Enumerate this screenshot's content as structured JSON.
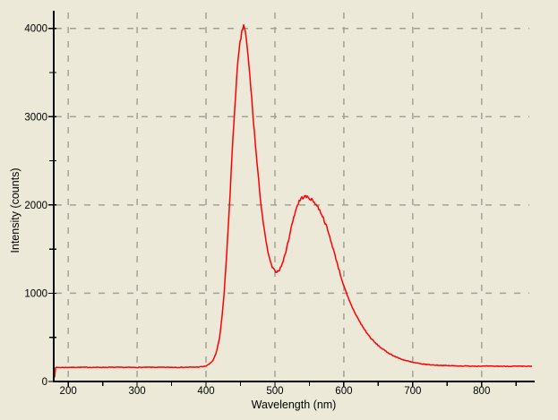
{
  "window": {
    "description": "Spectrometer intensity vs wavelength plot"
  },
  "colors": {
    "background": "#ece9d8",
    "curve": "#ff0000",
    "grid": "#a1a199",
    "axis": "#000000",
    "text": "#000000"
  },
  "chart_data": {
    "type": "line",
    "title": "",
    "xlabel": "Wavelength (nm)",
    "ylabel": "Intensity (counts)",
    "xlim": [
      179,
      877
    ],
    "ylim": [
      0,
      4200
    ],
    "x_major_ticks": [
      200,
      300,
      400,
      500,
      600,
      700,
      800
    ],
    "x_minor_ticks": [
      250,
      350,
      450,
      550,
      650,
      750,
      850
    ],
    "y_major_ticks": [
      0,
      1000,
      2000,
      3000,
      4000
    ],
    "y_minor_ticks": [
      500,
      1500,
      2500,
      3500
    ],
    "x_tick_labels": [
      "200",
      "300",
      "400",
      "500",
      "600",
      "700",
      "800"
    ],
    "y_tick_labels": [
      "0",
      "1000",
      "2000",
      "3000",
      "4000"
    ],
    "grid": {
      "style": "dashed",
      "x_lines": [
        200,
        300,
        400,
        500,
        600,
        700,
        800
      ],
      "y_lines": [
        1000,
        2000,
        3000,
        4000
      ]
    },
    "legend": null,
    "series": [
      {
        "name": "spectrum",
        "color": "#ff0000",
        "points": [
          [
            180,
            5
          ],
          [
            181,
            158
          ],
          [
            200,
            160
          ],
          [
            220,
            161
          ],
          [
            240,
            160
          ],
          [
            260,
            161
          ],
          [
            280,
            160
          ],
          [
            300,
            160
          ],
          [
            320,
            161
          ],
          [
            340,
            160
          ],
          [
            355,
            161
          ],
          [
            370,
            161
          ],
          [
            380,
            162
          ],
          [
            390,
            164
          ],
          [
            395,
            168
          ],
          [
            400,
            176
          ],
          [
            405,
            198
          ],
          [
            410,
            238
          ],
          [
            415,
            325
          ],
          [
            420,
            510
          ],
          [
            423,
            715
          ],
          [
            426,
            975
          ],
          [
            430,
            1440
          ],
          [
            434,
            2000
          ],
          [
            438,
            2600
          ],
          [
            442,
            3150
          ],
          [
            446,
            3600
          ],
          [
            450,
            3870
          ],
          [
            453,
            3990
          ],
          [
            455,
            4050
          ],
          [
            457,
            3960
          ],
          [
            460,
            3760
          ],
          [
            464,
            3430
          ],
          [
            468,
            3030
          ],
          [
            472,
            2650
          ],
          [
            476,
            2300
          ],
          [
            480,
            1990
          ],
          [
            484,
            1740
          ],
          [
            488,
            1540
          ],
          [
            492,
            1390
          ],
          [
            496,
            1295
          ],
          [
            500,
            1250
          ],
          [
            503,
            1244
          ],
          [
            507,
            1270
          ],
          [
            511,
            1340
          ],
          [
            515,
            1445
          ],
          [
            519,
            1580
          ],
          [
            523,
            1720
          ],
          [
            527,
            1855
          ],
          [
            531,
            1965
          ],
          [
            535,
            2040
          ],
          [
            539,
            2080
          ],
          [
            543,
            2095
          ],
          [
            547,
            2090
          ],
          [
            551,
            2072
          ],
          [
            555,
            2048
          ],
          [
            559,
            2015
          ],
          [
            563,
            1968
          ],
          [
            567,
            1910
          ],
          [
            571,
            1838
          ],
          [
            575,
            1750
          ],
          [
            580,
            1625
          ],
          [
            585,
            1490
          ],
          [
            590,
            1350
          ],
          [
            595,
            1210
          ],
          [
            600,
            1080
          ],
          [
            605,
            972
          ],
          [
            610,
            878
          ],
          [
            615,
            795
          ],
          [
            620,
            720
          ],
          [
            625,
            650
          ],
          [
            630,
            588
          ],
          [
            635,
            532
          ],
          [
            640,
            484
          ],
          [
            645,
            442
          ],
          [
            650,
            407
          ],
          [
            655,
            375
          ],
          [
            660,
            347
          ],
          [
            665,
            322
          ],
          [
            670,
            300
          ],
          [
            675,
            281
          ],
          [
            680,
            264
          ],
          [
            685,
            250
          ],
          [
            690,
            237
          ],
          [
            695,
            226
          ],
          [
            700,
            217
          ],
          [
            710,
            202
          ],
          [
            720,
            193
          ],
          [
            730,
            187
          ],
          [
            740,
            183
          ],
          [
            750,
            180
          ],
          [
            765,
            177
          ],
          [
            780,
            175
          ],
          [
            800,
            174
          ],
          [
            825,
            173
          ],
          [
            850,
            172
          ],
          [
            873,
            172
          ]
        ]
      }
    ]
  }
}
